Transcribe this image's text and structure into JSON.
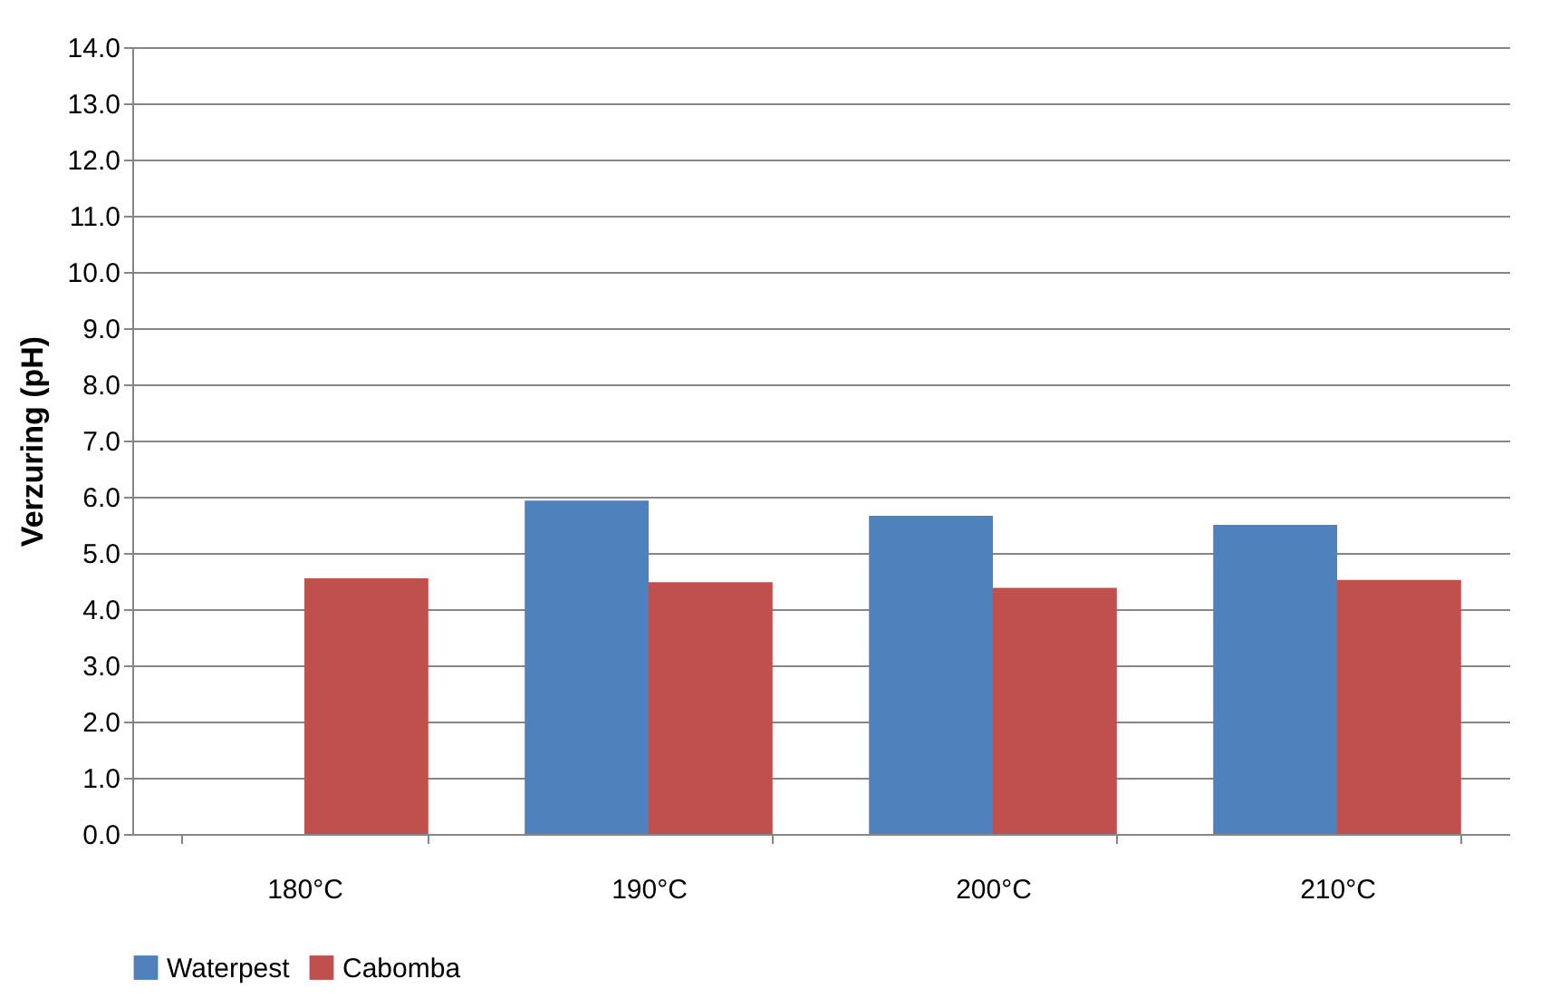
{
  "chart_data": {
    "type": "bar",
    "ylabel": "Verzuring (pH)",
    "categories": [
      "180°C",
      "190°C",
      "200°C",
      "210°C"
    ],
    "series": [
      {
        "name": "Waterpest",
        "color": "#4f81bd",
        "values": [
          null,
          5.93,
          5.66,
          5.5
        ]
      },
      {
        "name": "Cabomba",
        "color": "#c0504d",
        "values": [
          4.55,
          4.48,
          4.38,
          4.52
        ]
      }
    ],
    "ylim": [
      0,
      14
    ],
    "yticks": [
      {
        "value": 0,
        "label": "0.0"
      },
      {
        "value": 1,
        "label": "1.0"
      },
      {
        "value": 2,
        "label": "2.0"
      },
      {
        "value": 3,
        "label": "3.0"
      },
      {
        "value": 4,
        "label": "4.0"
      },
      {
        "value": 5,
        "label": "5.0"
      },
      {
        "value": 6,
        "label": "6.0"
      },
      {
        "value": 7,
        "label": "7.0"
      },
      {
        "value": 8,
        "label": "8.0"
      },
      {
        "value": 9,
        "label": "9.0"
      },
      {
        "value": 10,
        "label": "10.0"
      },
      {
        "value": 11,
        "label": "11.0"
      },
      {
        "value": 12,
        "label": "12.0"
      },
      {
        "value": 13,
        "label": "13.0"
      },
      {
        "value": 14,
        "label": "14.0"
      }
    ],
    "grid": "y",
    "legend": "bottom"
  }
}
